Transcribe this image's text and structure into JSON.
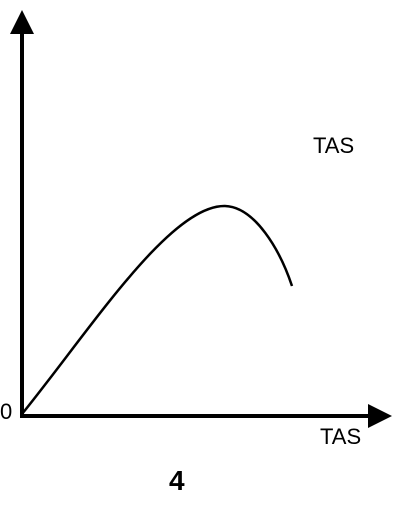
{
  "diagram": {
    "origin_label": "0",
    "y_axis_label": "TAS",
    "x_axis_label": "TAS",
    "figure_number": "4",
    "stroke_color": "#000000"
  }
}
